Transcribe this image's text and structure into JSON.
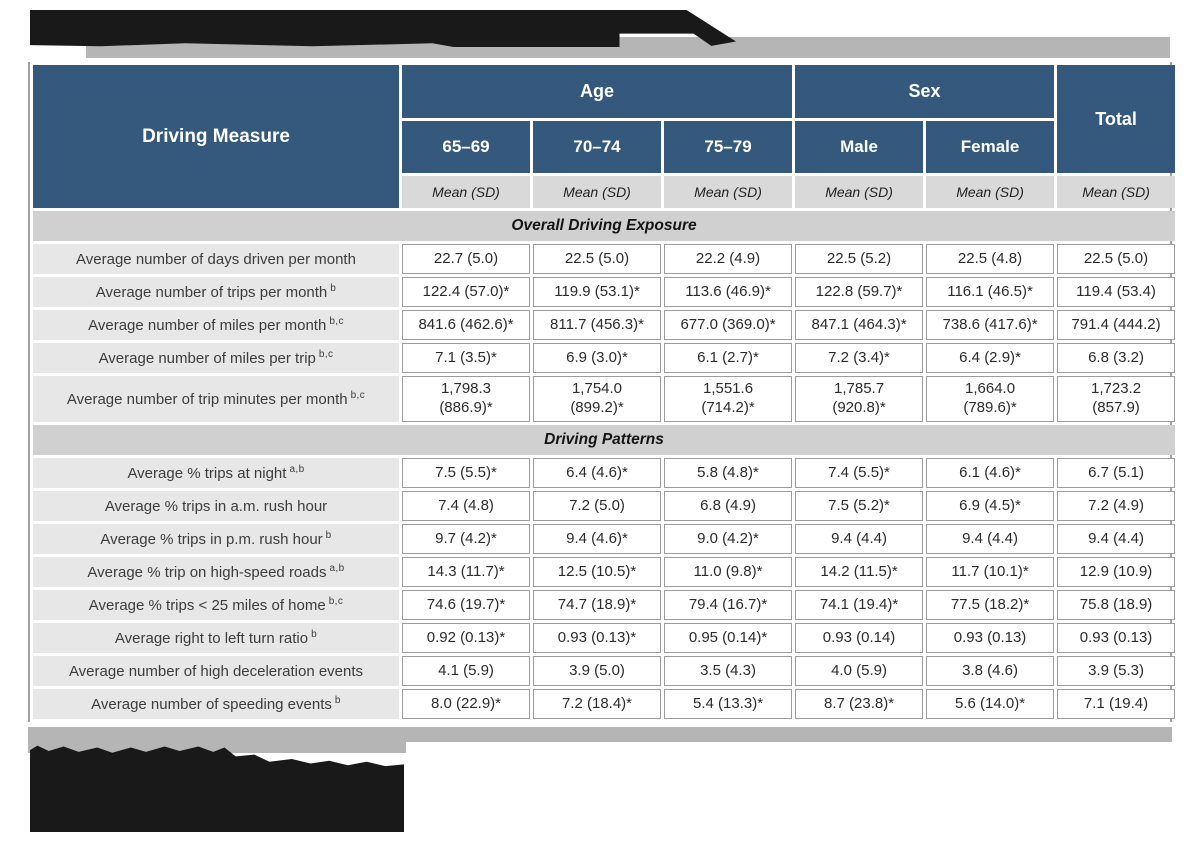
{
  "table": {
    "first_column_header": "Driving Measure",
    "column_groups": [
      {
        "label": "Age",
        "span": 3
      },
      {
        "label": "Sex",
        "span": 2
      }
    ],
    "total_header": "Total",
    "sub_headers": [
      "65–69",
      "70–74",
      "75–79",
      "Male",
      "Female"
    ],
    "stat_header": "Mean (SD)",
    "sections": [
      {
        "title": "Overall Driving Exposure",
        "rows": [
          {
            "label": "Average number of days driven per month",
            "sup": "",
            "values": [
              "22.7 (5.0)",
              "22.5 (5.0)",
              "22.2 (4.9)",
              "22.5 (5.2)",
              "22.5 (4.8)",
              "22.5 (5.0)"
            ]
          },
          {
            "label": "Average number of trips per month",
            "sup": "b",
            "values": [
              "122.4 (57.0)*",
              "119.9 (53.1)*",
              "113.6 (46.9)*",
              "122.8 (59.7)*",
              "116.1 (46.5)*",
              "119.4 (53.4)"
            ]
          },
          {
            "label": "Average number of miles per month",
            "sup": "b,c",
            "values": [
              "841.6 (462.6)*",
              "811.7 (456.3)*",
              "677.0 (369.0)*",
              "847.1 (464.3)*",
              "738.6 (417.6)*",
              "791.4 (444.2)"
            ]
          },
          {
            "label": "Average number of miles per trip",
            "sup": "b,c",
            "values": [
              "7.1 (3.5)*",
              "6.9 (3.0)*",
              "6.1 (2.7)*",
              "7.2 (3.4)*",
              "6.4 (2.9)*",
              "6.8 (3.2)"
            ]
          },
          {
            "label": "Average number of trip minutes per month",
            "sup": "b,c",
            "two_line": true,
            "values": [
              "1,798.3\n(886.9)*",
              "1,754.0\n(899.2)*",
              "1,551.6\n(714.2)*",
              "1,785.7\n(920.8)*",
              "1,664.0\n(789.6)*",
              "1,723.2\n(857.9)"
            ]
          }
        ]
      },
      {
        "title": "Driving Patterns",
        "rows": [
          {
            "label": "Average % trips at night",
            "sup": "a,b",
            "values": [
              "7.5 (5.5)*",
              "6.4 (4.6)*",
              "5.8 (4.8)*",
              "7.4 (5.5)*",
              "6.1 (4.6)*",
              "6.7 (5.1)"
            ]
          },
          {
            "label": "Average % trips in a.m. rush hour",
            "sup": "",
            "values": [
              "7.4 (4.8)",
              "7.2 (5.0)",
              "6.8 (4.9)",
              "7.5 (5.2)*",
              "6.9 (4.5)*",
              "7.2 (4.9)"
            ]
          },
          {
            "label": "Average % trips in p.m. rush hour",
            "sup": "b",
            "values": [
              "9.7 (4.2)*",
              "9.4 (4.6)*",
              "9.0 (4.2)*",
              "9.4 (4.4)",
              "9.4 (4.4)",
              "9.4 (4.4)"
            ]
          },
          {
            "label": "Average % trip on high-speed roads",
            "sup": "a,b",
            "values": [
              "14.3 (11.7)*",
              "12.5 (10.5)*",
              "11.0 (9.8)*",
              "14.2 (11.5)*",
              "11.7 (10.1)*",
              "12.9 (10.9)"
            ]
          },
          {
            "label": "Average % trips < 25 miles of home",
            "sup": "b,c",
            "values": [
              "74.6 (19.7)*",
              "74.7 (18.9)*",
              "79.4 (16.7)*",
              "74.1 (19.4)*",
              "77.5 (18.2)*",
              "75.8 (18.9)"
            ]
          },
          {
            "label": "Average right to left turn ratio",
            "sup": "b",
            "values": [
              "0.92 (0.13)*",
              "0.93 (0.13)*",
              "0.95 (0.14)*",
              "0.93 (0.14)",
              "0.93 (0.13)",
              "0.93 (0.13)"
            ]
          },
          {
            "label": "Average number of high deceleration events",
            "sup": "",
            "values": [
              "4.1 (5.9)",
              "3.9 (5.0)",
              "3.5 (4.3)",
              "4.0 (5.9)",
              "3.8 (4.6)",
              "3.9 (5.3)"
            ]
          },
          {
            "label": "Average number of speeding events",
            "sup": "b",
            "values": [
              "8.0 (22.9)*",
              "7.2 (18.4)*",
              "5.4 (13.3)*",
              "8.7 (23.8)*",
              "5.6 (14.0)*",
              "7.1 (19.4)"
            ]
          }
        ]
      }
    ]
  },
  "redactions": {
    "title_bar": "redacted",
    "footnotes_block": "redacted"
  },
  "colors": {
    "header_blue": "#35597d",
    "section_gray": "#d0d0d0",
    "label_gray": "#e7e7e7",
    "stat_row_gray": "#d9d9d9",
    "band_gray": "#b5b5b5",
    "redaction_black": "#191919"
  }
}
